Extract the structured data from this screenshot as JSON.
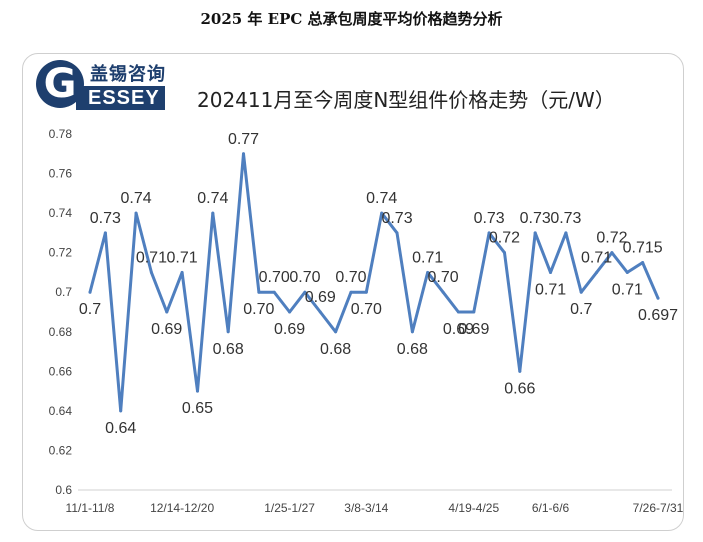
{
  "page_title": "2025 年 EPC 总承包周度平均价格趋势分析",
  "logo": {
    "cn": "盖锡咨询",
    "letter": "G",
    "en": "ESSEY"
  },
  "chart_data": {
    "type": "line",
    "title": "202411月至今周度N型组件价格走势（元/W）",
    "xlabel": "",
    "ylabel": "",
    "ylim": [
      0.6,
      0.78
    ],
    "yticks": [
      "0.6",
      "0.62",
      "0.64",
      "0.66",
      "0.68",
      "0.7",
      "0.72",
      "0.74",
      "0.76",
      "0.78"
    ],
    "grid": false,
    "legend": "none",
    "color": "#4f7fbf",
    "x_tick_labels": [
      "11/1-11/8",
      "12/14-12/20",
      "1/25-1/27",
      "3/8-3/14",
      "4/19-4/25",
      "6/1-6/6",
      "7/26-7/31"
    ],
    "x_tick_indices": [
      0,
      6,
      13,
      18,
      25,
      30,
      37
    ],
    "values": [
      0.7,
      0.73,
      0.64,
      0.74,
      0.71,
      0.69,
      0.71,
      0.65,
      0.74,
      0.68,
      0.77,
      0.7,
      0.7,
      0.69,
      0.7,
      0.69,
      0.68,
      0.7,
      0.7,
      0.74,
      0.73,
      0.68,
      0.71,
      0.7,
      0.69,
      0.69,
      0.73,
      0.72,
      0.66,
      0.73,
      0.71,
      0.73,
      0.7,
      0.71,
      0.72,
      0.71,
      0.715,
      0.697
    ],
    "labels": [
      "0.7",
      "0.73",
      "0.64",
      "0.74",
      "0.71",
      "0.69",
      "0.71",
      "0.65",
      "0.74",
      "0.68",
      "0.77",
      "0.70",
      "0.70",
      "0.69",
      "0.70",
      "0.69",
      "0.68",
      "0.70",
      "0.70",
      "0.74",
      "0.73",
      "0.68",
      "0.71",
      "0.70",
      "0.69",
      "0.69",
      "0.73",
      "0.72",
      "0.66",
      "0.73",
      "0.71",
      "0.73",
      "0.7",
      "0.71",
      "0.72",
      "0.71",
      "0.715",
      "0.697"
    ]
  }
}
